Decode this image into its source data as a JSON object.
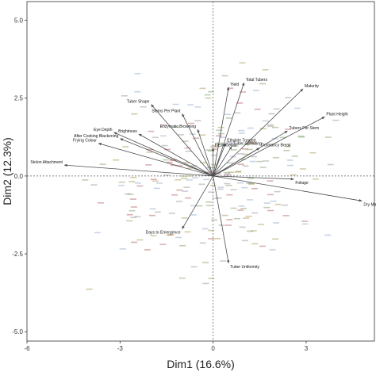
{
  "chart_data": {
    "type": "scatter",
    "title": "",
    "xlabel": "Dim1 (16.6%)",
    "ylabel": "Dim2 (12.3%)",
    "xlim": [
      -6,
      5.2
    ],
    "ylim": [
      -5.3,
      5.6
    ],
    "xticks": [
      -6,
      -3,
      0,
      3
    ],
    "yticks": [
      -5.0,
      -2.5,
      0.0,
      2.5,
      5.0
    ],
    "ytick_labels": [
      "-5.0",
      "-2.5",
      "0.0",
      "2.5",
      "5.0"
    ],
    "grid": false,
    "zero_lines": true,
    "arrow_color": "#4d4d4d",
    "variables": [
      {
        "name": "Maturity",
        "x": 2.9,
        "y": 2.8
      },
      {
        "name": "Plant Height",
        "x": 3.6,
        "y": 1.9
      },
      {
        "name": "Total Tubers",
        "x": 1.0,
        "y": 3.0
      },
      {
        "name": "Yield",
        "x": 0.5,
        "y": 2.85
      },
      {
        "name": "Tuber Shape",
        "x": -2.0,
        "y": 2.3
      },
      {
        "name": "Stems Per Plant",
        "x": -1.0,
        "y": 2.0
      },
      {
        "name": "Enzymatic Browning",
        "x": -0.5,
        "y": 1.5
      },
      {
        "name": "Ethylele Treated",
        "x": 0.4,
        "y": 1.05
      },
      {
        "name": "Tuber Sprouting",
        "x": 0.6,
        "y": 0.95
      },
      {
        "name": "Tubers Per Stem",
        "x": 2.4,
        "y": 1.45
      },
      {
        "name": "Frying Colour",
        "x": -3.7,
        "y": 1.05
      },
      {
        "name": "Eye Depth",
        "x": -3.2,
        "y": 1.4
      },
      {
        "name": "Brightness",
        "x": -2.4,
        "y": 1.35
      },
      {
        "name": "After Cooking Blackening",
        "x": -3.0,
        "y": 1.2
      },
      {
        "name": "Flesh Colour",
        "x": 0.0,
        "y": 0.9
      },
      {
        "name": "Dormancy Break",
        "x": 1.5,
        "y": 0.9
      },
      {
        "name": "Stolon Attachment",
        "x": -4.8,
        "y": 0.35
      },
      {
        "name": "Foliage",
        "x": 2.6,
        "y": -0.1
      },
      {
        "name": "Dry Matter",
        "x": 4.8,
        "y": -0.8
      },
      {
        "name": "Days to Emergence",
        "x": -1.0,
        "y": -1.7
      },
      {
        "name": "Tuber Uniformity",
        "x": 0.5,
        "y": -2.8
      }
    ]
  }
}
